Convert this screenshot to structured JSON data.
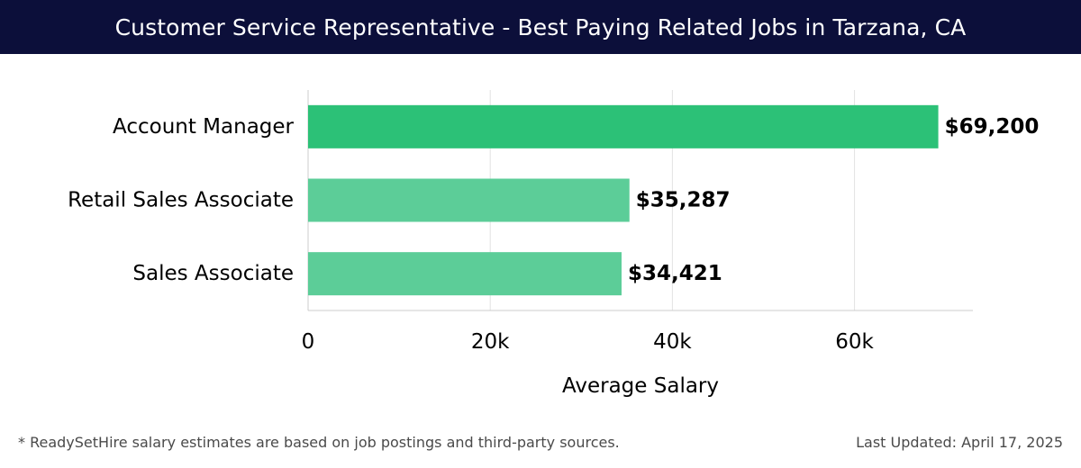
{
  "header": {
    "title": "Customer Service Representative - Best Paying Related Jobs in Tarzana, CA"
  },
  "chart_data": {
    "type": "bar",
    "orientation": "horizontal",
    "categories": [
      "Account Manager",
      "Retail Sales Associate",
      "Sales Associate"
    ],
    "values": [
      69200,
      35287,
      34421
    ],
    "value_labels": [
      "$69,200",
      "$35,287",
      "$34,421"
    ],
    "xlabel": "Average Salary",
    "ylabel": "",
    "xlim": [
      0,
      73000
    ],
    "xticks": [
      0,
      20000,
      40000,
      60000
    ],
    "xtick_labels": [
      "0",
      "20k",
      "40k",
      "60k"
    ],
    "grid": true,
    "colors": {
      "highlight": "#2cc177",
      "default": "#5ccd98",
      "grid": "#e2e2e2",
      "axis": "#cccccc",
      "label": "#000000"
    }
  },
  "footer": {
    "note": "* ReadySetHire salary estimates are based on job postings and third-party sources.",
    "updated": "Last Updated: April 17, 2025"
  }
}
